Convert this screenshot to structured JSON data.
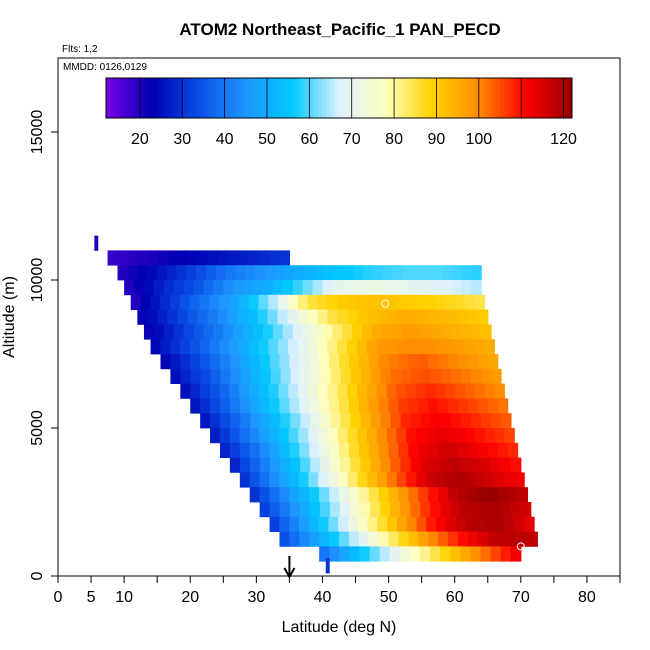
{
  "chart_data": {
    "type": "heatmap",
    "title": "ATOM2 Northeast_Pacific_1 PAN_PECD",
    "flights_label": "Flts: 1,2",
    "mmdd_label": "MMDD: 0126,0129",
    "xlabel": "Latitude (deg N)",
    "ylabel": "Altitude (m)",
    "xlim": [
      0,
      85
    ],
    "ylim": [
      0,
      17500
    ],
    "x_ticks": [
      0,
      5,
      10,
      20,
      30,
      40,
      50,
      60,
      70,
      80
    ],
    "x_minor_ticks": [
      15,
      25,
      35,
      45,
      55,
      65,
      75,
      85
    ],
    "y_ticks": [
      0,
      5000,
      10000,
      15000
    ],
    "colorbar": {
      "range": [
        12,
        122
      ],
      "ticks": [
        20,
        30,
        40,
        50,
        60,
        70,
        80,
        90,
        100,
        120
      ],
      "colors": [
        "#7a00e6",
        "#0000b4",
        "#0a50e6",
        "#1e96ff",
        "#00c8ff",
        "#dcf0ff",
        "#ffffbe",
        "#ffd200",
        "#ff8c00",
        "#ff0000",
        "#960000"
      ]
    },
    "marker": {
      "latitude": 35,
      "label": "arrow"
    },
    "grid_rows": [
      {
        "altitude": 11250,
        "lat_start": 5.5,
        "lat_end": 6.0,
        "values": [
          20
        ]
      },
      {
        "altitude": 10750,
        "lat_start": 7.5,
        "lat_end": 35,
        "values": [
          18,
          20,
          22,
          24,
          26,
          28,
          30
        ]
      },
      {
        "altitude": 10250,
        "lat_start": 9,
        "lat_end": 64,
        "values": [
          20,
          25,
          32,
          40,
          45,
          50,
          55,
          58,
          60,
          60,
          58
        ]
      },
      {
        "altitude": 9750,
        "lat_start": 10,
        "lat_end": 64,
        "values": [
          20,
          28,
          35,
          45,
          50,
          60,
          70,
          72,
          70,
          68,
          65
        ]
      },
      {
        "altitude": 9250,
        "lat_start": 11,
        "lat_end": 64.5,
        "values": [
          20,
          30,
          40,
          50,
          65,
          85,
          90,
          92,
          90,
          88,
          85
        ]
      },
      {
        "altitude": 8750,
        "lat_start": 12,
        "lat_end": 65,
        "values": [
          22,
          32,
          42,
          55,
          70,
          85,
          92,
          95,
          93,
          90
        ]
      },
      {
        "altitude": 8250,
        "lat_start": 13,
        "lat_end": 65.5,
        "values": [
          22,
          32,
          42,
          55,
          68,
          82,
          95,
          98,
          95,
          92
        ]
      },
      {
        "altitude": 7750,
        "lat_start": 14,
        "lat_end": 66,
        "values": [
          24,
          34,
          45,
          58,
          70,
          85,
          98,
          100,
          98,
          95
        ]
      },
      {
        "altitude": 7250,
        "lat_start": 15.5,
        "lat_end": 66.5,
        "values": [
          24,
          34,
          46,
          60,
          72,
          88,
          100,
          104,
          100,
          96
        ]
      },
      {
        "altitude": 6750,
        "lat_start": 17,
        "lat_end": 67,
        "values": [
          25,
          35,
          48,
          62,
          75,
          90,
          102,
          105,
          102,
          98
        ]
      },
      {
        "altitude": 6250,
        "lat_start": 18.5,
        "lat_end": 67.5,
        "values": [
          25,
          36,
          50,
          64,
          78,
          92,
          104,
          108,
          104,
          100
        ]
      },
      {
        "altitude": 5750,
        "lat_start": 20,
        "lat_end": 68,
        "values": [
          26,
          38,
          52,
          66,
          80,
          95,
          106,
          110,
          106,
          102
        ]
      },
      {
        "altitude": 5250,
        "lat_start": 21.5,
        "lat_end": 68.5,
        "values": [
          26,
          38,
          52,
          66,
          82,
          96,
          108,
          112,
          108,
          104
        ]
      },
      {
        "altitude": 4750,
        "lat_start": 23,
        "lat_end": 69,
        "values": [
          27,
          40,
          54,
          68,
          84,
          98,
          110,
          114,
          110,
          106
        ]
      },
      {
        "altitude": 4250,
        "lat_start": 24.5,
        "lat_end": 69.5,
        "values": [
          28,
          40,
          55,
          70,
          86,
          100,
          112,
          116,
          112,
          108
        ]
      },
      {
        "altitude": 3750,
        "lat_start": 26,
        "lat_end": 70,
        "values": [
          28,
          42,
          56,
          72,
          88,
          102,
          114,
          118,
          115,
          110
        ]
      },
      {
        "altitude": 3250,
        "lat_start": 27.5,
        "lat_end": 70.5,
        "values": [
          30,
          44,
          58,
          74,
          90,
          104,
          116,
          120,
          116,
          112
        ]
      },
      {
        "altitude": 2750,
        "lat_start": 29,
        "lat_end": 71,
        "values": [
          30,
          45,
          60,
          76,
          92,
          106,
          118,
          122,
          118
        ]
      },
      {
        "altitude": 2250,
        "lat_start": 30.5,
        "lat_end": 71.5,
        "values": [
          32,
          46,
          62,
          78,
          94,
          108,
          118,
          120,
          116
        ]
      },
      {
        "altitude": 1750,
        "lat_start": 32,
        "lat_end": 72,
        "values": [
          32,
          48,
          64,
          80,
          96,
          110,
          118,
          120,
          114
        ]
      },
      {
        "altitude": 1250,
        "lat_start": 33.5,
        "lat_end": 72.5,
        "values": [
          34,
          50,
          66,
          82,
          98,
          110,
          118,
          118
        ]
      },
      {
        "altitude": 750,
        "lat_start": 39.5,
        "lat_end": 70,
        "values": [
          40,
          56,
          72,
          86,
          100,
          112
        ]
      },
      {
        "altitude": 350,
        "lat_start": 40.5,
        "lat_end": 41,
        "values": [
          30
        ]
      }
    ],
    "point_markers": [
      {
        "lat": 49.5,
        "altitude": 9200
      },
      {
        "lat": 70,
        "altitude": 1000
      }
    ]
  }
}
